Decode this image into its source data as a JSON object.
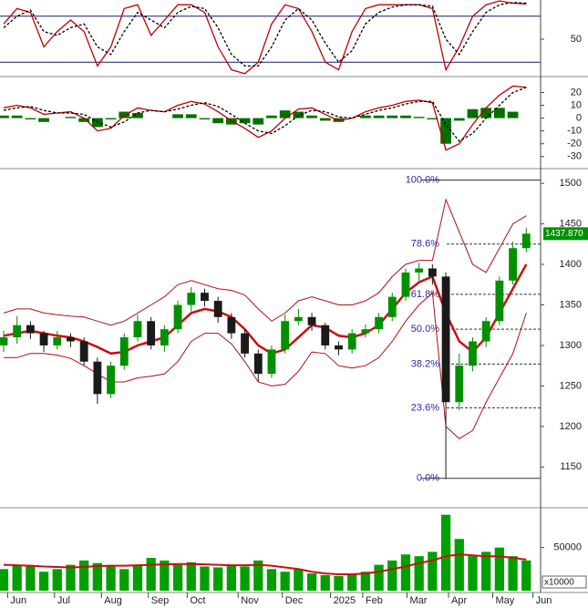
{
  "chart_data": [
    {
      "type": "line",
      "ylim": [
        0,
        100
      ],
      "yticks": [
        50
      ],
      "levels": [
        80,
        20
      ],
      "level_color": "#1a1a6e",
      "series": [
        {
          "color": "#c00000",
          "values": [
            70,
            90,
            85,
            40,
            60,
            75,
            60,
            15,
            40,
            90,
            95,
            55,
            75,
            95,
            95,
            85,
            40,
            10,
            5,
            20,
            70,
            95,
            90,
            60,
            20,
            10,
            60,
            90,
            95,
            95,
            95,
            95,
            90,
            10,
            40,
            80,
            95,
            100,
            97,
            96
          ]
        },
        {
          "color": "#000000",
          "dash": true,
          "values": [
            65,
            80,
            88,
            60,
            55,
            65,
            70,
            40,
            30,
            60,
            85,
            75,
            65,
            85,
            93,
            90,
            65,
            30,
            15,
            15,
            40,
            75,
            90,
            75,
            45,
            20,
            35,
            70,
            85,
            92,
            95,
            95,
            93,
            50,
            30,
            60,
            85,
            95,
            98,
            97
          ]
        }
      ]
    },
    {
      "type": "line",
      "ylim": [
        -38,
        31
      ],
      "yticks": [
        20,
        10,
        0,
        -10,
        -20,
        -30
      ],
      "series": [
        {
          "color": "#007000",
          "type": "bar",
          "values": [
            2,
            2,
            -1,
            -3,
            0,
            1,
            -3,
            -7,
            -1,
            5,
            4,
            0,
            0,
            3,
            3,
            -1,
            -4,
            -5,
            -4,
            -5,
            2,
            6,
            5,
            2,
            -2,
            -3,
            0,
            2,
            2,
            2,
            2,
            1,
            -1,
            -20,
            -2,
            7,
            8,
            8,
            5,
            0
          ]
        },
        {
          "color": "#c00000",
          "values": [
            8,
            10,
            8,
            3,
            4,
            5,
            0,
            -10,
            -8,
            2,
            8,
            6,
            5,
            10,
            13,
            11,
            5,
            -2,
            -8,
            -15,
            -10,
            0,
            7,
            8,
            3,
            -2,
            0,
            5,
            8,
            10,
            13,
            14,
            12,
            -25,
            -20,
            -5,
            8,
            18,
            25,
            24
          ]
        },
        {
          "color": "#000000",
          "dash": true,
          "values": [
            6,
            8,
            9,
            6,
            4,
            4,
            3,
            -3,
            -7,
            -3,
            4,
            6,
            5,
            7,
            10,
            12,
            9,
            3,
            -4,
            -10,
            -12,
            -6,
            2,
            6,
            5,
            1,
            0,
            3,
            6,
            8,
            11,
            13,
            13,
            -5,
            -18,
            -12,
            0,
            10,
            20,
            24
          ]
        }
      ]
    },
    {
      "type": "candlestick",
      "ylim": [
        1102,
        1517
      ],
      "yticks": [
        1150,
        1200,
        1250,
        1300,
        1350,
        1400,
        1450,
        1500
      ],
      "up_color": "#009000",
      "down_color": "#1a1a1a",
      "open": [
        1300,
        1310,
        1325,
        1315,
        1300,
        1310,
        1305,
        1280,
        1240,
        1275,
        1310,
        1330,
        1300,
        1320,
        1350,
        1365,
        1355,
        1335,
        1315,
        1290,
        1265,
        1295,
        1330,
        1335,
        1325,
        1300,
        1295,
        1315,
        1320,
        1335,
        1360,
        1390,
        1395,
        1385,
        1230,
        1275,
        1305,
        1330,
        1380,
        1420
      ],
      "high": [
        1318,
        1336,
        1330,
        1318,
        1318,
        1315,
        1310,
        1285,
        1280,
        1315,
        1338,
        1335,
        1325,
        1355,
        1372,
        1370,
        1360,
        1340,
        1320,
        1295,
        1300,
        1338,
        1345,
        1340,
        1328,
        1305,
        1320,
        1326,
        1340,
        1365,
        1395,
        1402,
        1400,
        1390,
        1290,
        1310,
        1335,
        1385,
        1428,
        1445
      ],
      "low": [
        1292,
        1302,
        1308,
        1292,
        1295,
        1298,
        1275,
        1228,
        1235,
        1270,
        1305,
        1295,
        1292,
        1315,
        1342,
        1348,
        1328,
        1308,
        1285,
        1255,
        1260,
        1290,
        1325,
        1318,
        1295,
        1288,
        1290,
        1310,
        1315,
        1330,
        1355,
        1380,
        1375,
        1135,
        1220,
        1268,
        1298,
        1325,
        1375,
        1415
      ],
      "close": [
        1310,
        1325,
        1315,
        1300,
        1310,
        1305,
        1280,
        1240,
        1275,
        1310,
        1330,
        1300,
        1320,
        1350,
        1365,
        1355,
        1335,
        1315,
        1290,
        1265,
        1295,
        1330,
        1335,
        1325,
        1300,
        1295,
        1315,
        1320,
        1335,
        1360,
        1390,
        1395,
        1385,
        1230,
        1275,
        1305,
        1330,
        1380,
        1420,
        1437.87
      ],
      "series": [
        {
          "color": "#c81010",
          "width": 2.5,
          "values": [
            1312,
            1315,
            1318,
            1315,
            1312,
            1310,
            1305,
            1298,
            1290,
            1292,
            1300,
            1305,
            1310,
            1325,
            1340,
            1345,
            1342,
            1335,
            1320,
            1300,
            1290,
            1295,
            1310,
            1325,
            1322,
            1312,
            1310,
            1315,
            1325,
            1345,
            1365,
            1378,
            1385,
            1340,
            1305,
            1292,
            1310,
            1340,
            1370,
            1400
          ]
        },
        {
          "color": "#b01010",
          "width": 1,
          "values": [
            1340,
            1345,
            1345,
            1340,
            1338,
            1336,
            1335,
            1330,
            1325,
            1330,
            1340,
            1350,
            1360,
            1375,
            1380,
            1375,
            1370,
            1368,
            1362,
            1345,
            1330,
            1340,
            1355,
            1360,
            1355,
            1350,
            1350,
            1355,
            1365,
            1385,
            1400,
            1405,
            1405,
            1480,
            1440,
            1400,
            1390,
            1420,
            1450,
            1460
          ]
        },
        {
          "color": "#b01010",
          "width": 1,
          "values": [
            1285,
            1285,
            1290,
            1290,
            1288,
            1284,
            1275,
            1265,
            1255,
            1255,
            1260,
            1262,
            1265,
            1280,
            1305,
            1315,
            1315,
            1302,
            1280,
            1255,
            1250,
            1252,
            1268,
            1292,
            1290,
            1275,
            1272,
            1275,
            1285,
            1305,
            1330,
            1350,
            1365,
            1200,
            1185,
            1195,
            1230,
            1260,
            1290,
            1340
          ]
        }
      ],
      "fib_levels": [
        {
          "value": 1504,
          "label": "100.0%"
        },
        {
          "value": 1425,
          "label": "78.6%"
        },
        {
          "value": 1363,
          "label": "61.8%"
        },
        {
          "value": 1320,
          "label": "50.0%"
        },
        {
          "value": 1277,
          "label": "38.2%"
        },
        {
          "value": 1223,
          "label": "23.6%"
        },
        {
          "value": 1136,
          "label": "0.0%"
        }
      ],
      "last_price": {
        "value": 1437.87,
        "label": "1437.870"
      }
    },
    {
      "type": "bar",
      "ylim": [
        0,
        93000
      ],
      "yticks": [
        50000
      ],
      "unit_label": "x10000",
      "color": "#00a000",
      "x": [
        0,
        1,
        2,
        3,
        4,
        5,
        6,
        7,
        8,
        9,
        10,
        11,
        12,
        13,
        14,
        15,
        16,
        17,
        18,
        19,
        20,
        21,
        22,
        23,
        24,
        25,
        26,
        27,
        28,
        29,
        30,
        31,
        32,
        33,
        34,
        35,
        36,
        37,
        38,
        39
      ],
      "xlim": [
        -0.27,
        40.07
      ],
      "xticks": [
        {
          "value": 0.3,
          "label": "Jun"
        },
        {
          "value": 3.8,
          "label": "Jul"
        },
        {
          "value": 7.3,
          "label": "Aug"
        },
        {
          "value": 10.8,
          "label": "Sep"
        },
        {
          "value": 13.7,
          "label": "Oct"
        },
        {
          "value": 17.5,
          "label": "Nov"
        },
        {
          "value": 20.8,
          "label": "Dec"
        },
        {
          "value": 24.4,
          "label": "2025"
        },
        {
          "value": 26.8,
          "label": "Feb"
        },
        {
          "value": 30.1,
          "label": "Mar"
        },
        {
          "value": 33.2,
          "label": "Apr"
        },
        {
          "value": 36.5,
          "label": "May"
        },
        {
          "value": 39.5,
          "label": "Jun"
        }
      ],
      "values": [
        25000,
        30000,
        28000,
        22000,
        25000,
        30000,
        35000,
        32000,
        28000,
        25000,
        30000,
        38000,
        35000,
        30000,
        33000,
        28000,
        27000,
        30000,
        28000,
        35000,
        25000,
        22000,
        25000,
        20000,
        18000,
        17000,
        20000,
        22000,
        30000,
        35000,
        42000,
        40000,
        45000,
        88000,
        60000,
        40000,
        45000,
        50000,
        40000,
        35000
      ],
      "series": [
        {
          "color": "#c81010",
          "width": 2,
          "values": [
            30000,
            29500,
            29000,
            28000,
            27500,
            27000,
            27500,
            28500,
            29000,
            29000,
            29500,
            30000,
            30500,
            31000,
            31000,
            30500,
            30000,
            29500,
            29500,
            30000,
            29000,
            27000,
            25000,
            22000,
            20000,
            19000,
            19000,
            20000,
            22000,
            25000,
            28000,
            32000,
            35000,
            40000,
            42000,
            41000,
            40000,
            40000,
            38000,
            36000
          ]
        }
      ]
    }
  ]
}
